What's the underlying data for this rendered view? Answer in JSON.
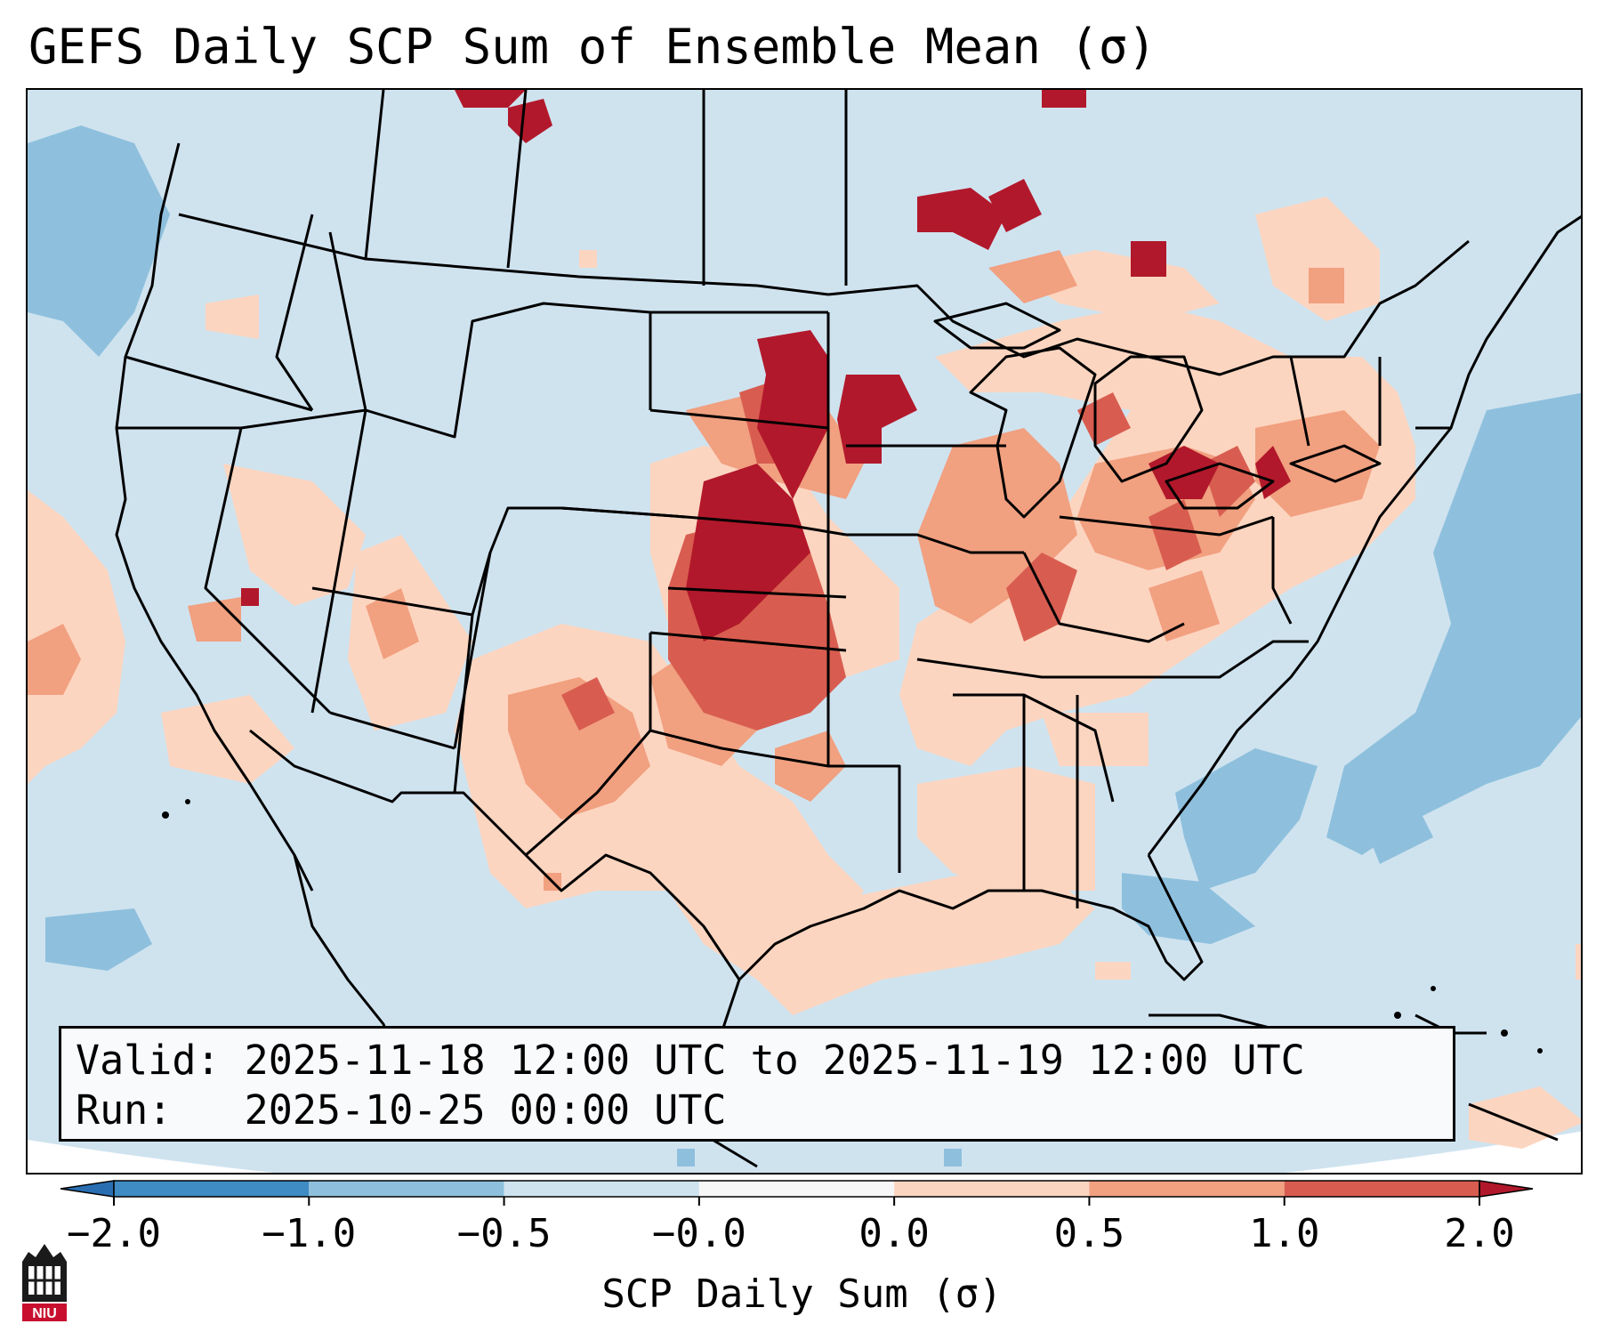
{
  "title": "GEFS Daily SCP Sum of Ensemble Mean (σ)",
  "info": {
    "valid_line": "Valid: 2025-11-18 12:00 UTC to 2025-11-19 12:00 UTC",
    "run_line": "Run:   2025-10-25 00:00 UTC"
  },
  "colorbar": {
    "label": "SCP Daily Sum (σ)",
    "ticks": [
      "−2.0",
      "−1.0",
      "−0.5",
      "−0.0",
      "0.0",
      "0.5",
      "1.0",
      "2.0"
    ],
    "bins": [
      {
        "range": "-2.0 to -1.0",
        "color": "#3f8bc3"
      },
      {
        "range": "-1.0 to -0.5",
        "color": "#8ec0dd"
      },
      {
        "range": "-0.5 to -0.0",
        "color": "#cfe3ef"
      },
      {
        "range": "-0.0 to 0.0",
        "color": "#f7f7f7"
      },
      {
        "range": "0.0 to 0.5",
        "color": "#fcd5c0"
      },
      {
        "range": "0.5 to 1.0",
        "color": "#f1a080"
      },
      {
        "range": "1.0 to 2.0",
        "color": "#d85d50"
      }
    ],
    "under_color": "#2a6eb2",
    "over_color": "#b2182b"
  },
  "logo": {
    "text": "NIU",
    "icon": "niu-logo-icon"
  }
}
